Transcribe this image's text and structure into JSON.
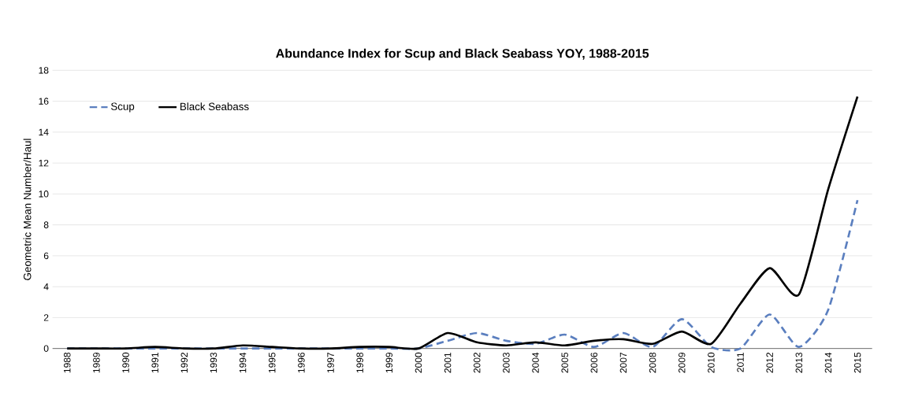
{
  "chart_data": {
    "type": "line",
    "title": "Abundance Index for Scup and Black Seabass YOY, 1988-2015",
    "ylabel": "Geometric Mean Number/Haul",
    "categories": [
      "1988",
      "1989",
      "1990",
      "1991",
      "1992",
      "1993",
      "1994",
      "1995",
      "1996",
      "1997",
      "1998",
      "1999",
      "2000",
      "2001",
      "2002",
      "2003",
      "2004",
      "2005",
      "2006",
      "2007",
      "2008",
      "2009",
      "2010",
      "2011",
      "2012",
      "2013",
      "2014",
      "2015"
    ],
    "series": [
      {
        "name": "Scup",
        "color": "#5b7fbf",
        "line_style": "dashed",
        "values": [
          0,
          0,
          0,
          0,
          0,
          0,
          0,
          0,
          0,
          0,
          0,
          0,
          0,
          0.5,
          1.0,
          0.5,
          0.3,
          0.9,
          0.1,
          1.0,
          0.1,
          1.9,
          0.1,
          0,
          2.2,
          0.1,
          2.5,
          9.6
        ]
      },
      {
        "name": "Black Seabass",
        "color": "#000000",
        "line_style": "solid",
        "values": [
          0,
          0,
          0,
          0.1,
          0,
          0,
          0.2,
          0.1,
          0,
          0,
          0.1,
          0.1,
          0,
          1.0,
          0.4,
          0.2,
          0.4,
          0.2,
          0.5,
          0.6,
          0.3,
          1.1,
          0.3,
          2.9,
          5.2,
          3.5,
          10.3,
          16.3
        ]
      }
    ],
    "ylim": [
      0,
      18
    ],
    "yticks": [
      0,
      2,
      4,
      6,
      8,
      10,
      12,
      14,
      16,
      18
    ],
    "grid": "y",
    "legend": "top left",
    "marker": "none"
  }
}
